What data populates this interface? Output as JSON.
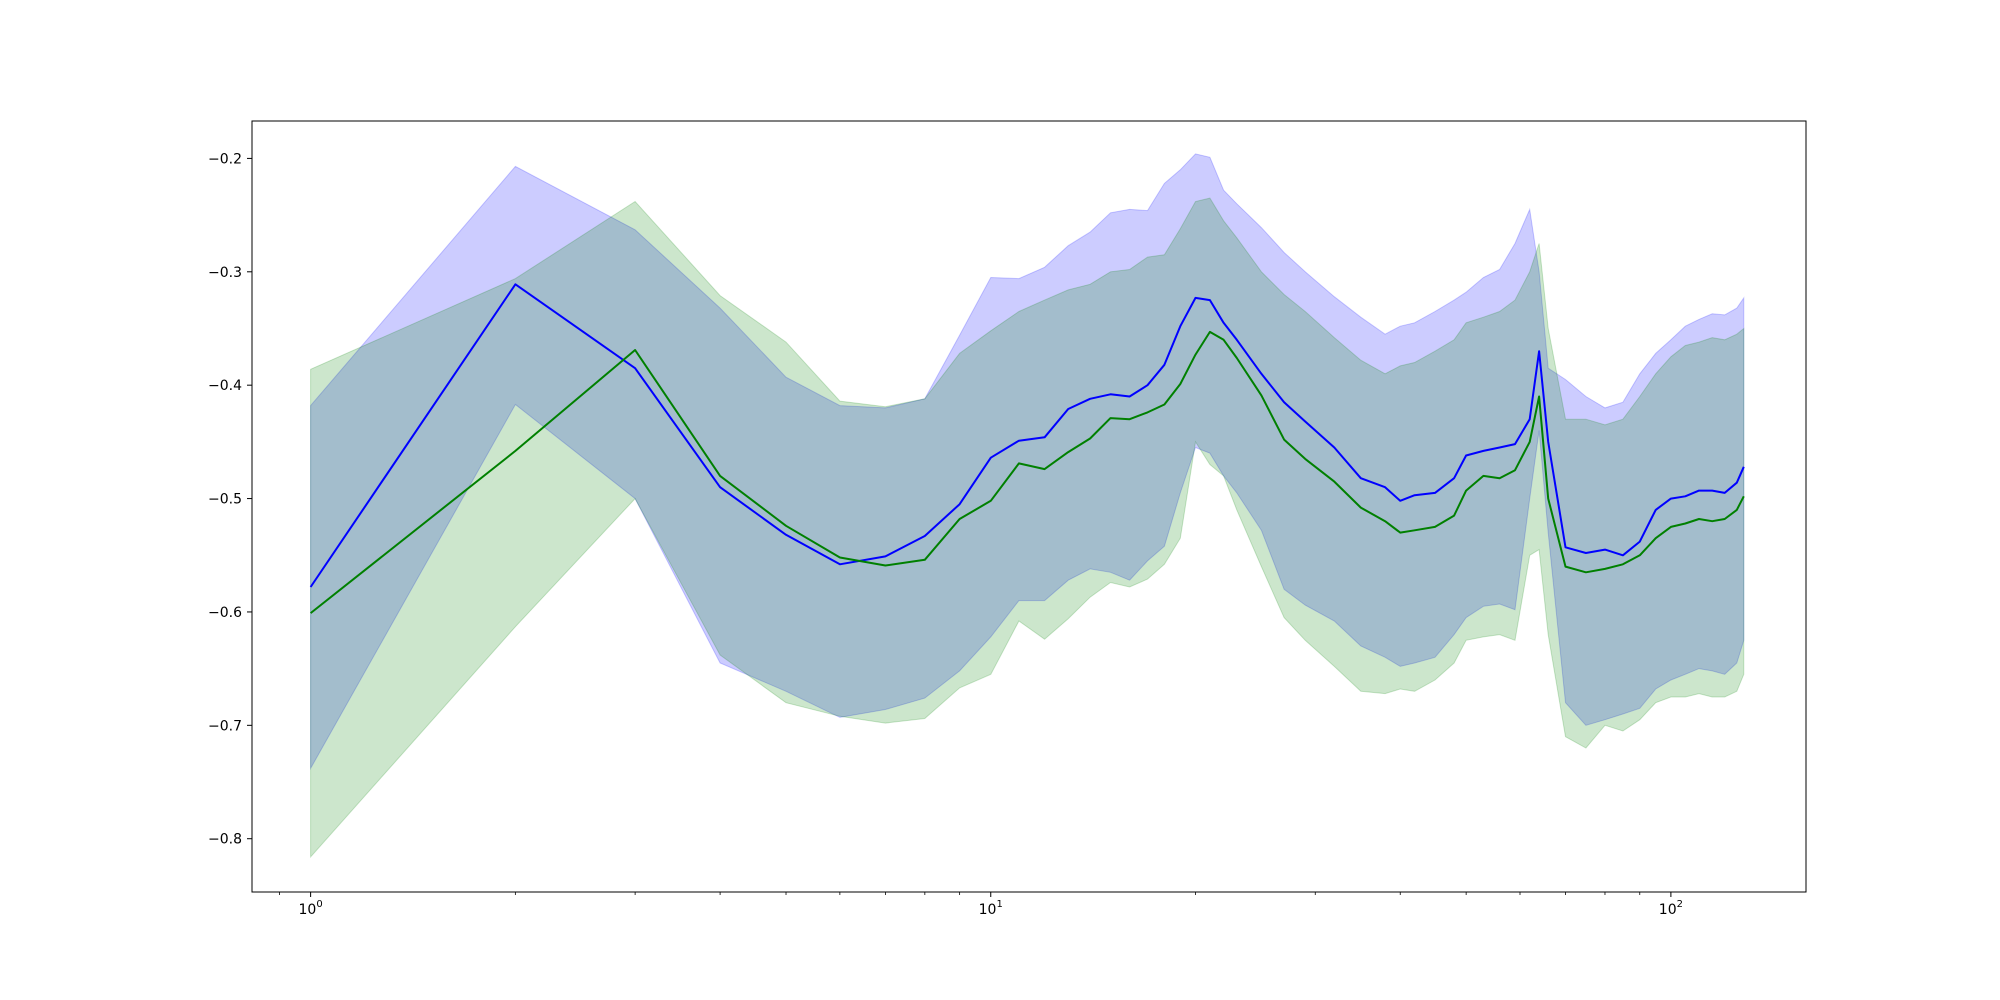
{
  "chart_data": {
    "type": "line",
    "title": "",
    "xlabel": "",
    "ylabel": "",
    "x_scale": "log",
    "xlim": [
      0.82,
      158
    ],
    "ylim": [
      -0.847,
      -0.167
    ],
    "grid": false,
    "legend": "none",
    "x_ticks": [
      {
        "value": 1,
        "base": "10",
        "exp": "0"
      },
      {
        "value": 10,
        "base": "10",
        "exp": "1"
      },
      {
        "value": 100,
        "base": "10",
        "exp": "2"
      }
    ],
    "y_ticks": [
      {
        "value": -0.2,
        "label": "−0.2"
      },
      {
        "value": -0.3,
        "label": "−0.3"
      },
      {
        "value": -0.4,
        "label": "−0.4"
      },
      {
        "value": -0.5,
        "label": "−0.5"
      },
      {
        "value": -0.6,
        "label": "−0.6"
      },
      {
        "value": -0.7,
        "label": "−0.7"
      },
      {
        "value": -0.8,
        "label": "−0.8"
      }
    ],
    "x": [
      1,
      2,
      3,
      4,
      5,
      6,
      7,
      8,
      9,
      10,
      11,
      12,
      13,
      14,
      15,
      16,
      17,
      18,
      19,
      20,
      21,
      22,
      23,
      25,
      27,
      29,
      32,
      35,
      38,
      40,
      42,
      45,
      48,
      50,
      53,
      56,
      59,
      62,
      64,
      66,
      70,
      75,
      80,
      85,
      90,
      95,
      100,
      105,
      110,
      115,
      120,
      125,
      128
    ],
    "series": [
      {
        "color": "#0000ff",
        "band_color": "#0000ff",
        "band_opacity": 0.2,
        "values": [
          -0.578,
          -0.311,
          -0.385,
          -0.49,
          -0.532,
          -0.558,
          -0.551,
          -0.533,
          -0.505,
          -0.464,
          -0.449,
          -0.446,
          -0.421,
          -0.412,
          -0.408,
          -0.41,
          -0.4,
          -0.382,
          -0.348,
          -0.323,
          -0.325,
          -0.345,
          -0.36,
          -0.39,
          -0.415,
          -0.432,
          -0.455,
          -0.482,
          -0.49,
          -0.502,
          -0.497,
          -0.495,
          -0.482,
          -0.462,
          -0.458,
          -0.455,
          -0.452,
          -0.43,
          -0.37,
          -0.45,
          -0.543,
          -0.548,
          -0.545,
          -0.55,
          -0.538,
          -0.51,
          -0.5,
          -0.498,
          -0.493,
          -0.493,
          -0.495,
          -0.486,
          -0.472
        ],
        "upper": [
          -0.418,
          -0.207,
          -0.263,
          -0.332,
          -0.393,
          -0.418,
          -0.42,
          -0.412,
          -0.356,
          -0.305,
          -0.306,
          -0.296,
          -0.277,
          -0.265,
          -0.248,
          -0.245,
          -0.246,
          -0.222,
          -0.21,
          -0.196,
          -0.199,
          -0.228,
          -0.24,
          -0.261,
          -0.283,
          -0.3,
          -0.322,
          -0.34,
          -0.355,
          -0.348,
          -0.345,
          -0.335,
          -0.325,
          -0.318,
          -0.305,
          -0.298,
          -0.275,
          -0.245,
          -0.3,
          -0.385,
          -0.395,
          -0.41,
          -0.42,
          -0.415,
          -0.39,
          -0.372,
          -0.36,
          -0.348,
          -0.342,
          -0.337,
          -0.338,
          -0.332,
          -0.323
        ],
        "lower": [
          -0.738,
          -0.417,
          -0.5,
          -0.645,
          -0.67,
          -0.693,
          -0.686,
          -0.676,
          -0.652,
          -0.622,
          -0.59,
          -0.59,
          -0.572,
          -0.562,
          -0.565,
          -0.572,
          -0.555,
          -0.542,
          -0.495,
          -0.455,
          -0.46,
          -0.48,
          -0.495,
          -0.528,
          -0.58,
          -0.594,
          -0.608,
          -0.63,
          -0.64,
          -0.648,
          -0.645,
          -0.64,
          -0.62,
          -0.605,
          -0.595,
          -0.593,
          -0.598,
          -0.5,
          -0.44,
          -0.53,
          -0.68,
          -0.7,
          -0.695,
          -0.69,
          -0.685,
          -0.668,
          -0.66,
          -0.655,
          -0.65,
          -0.652,
          -0.655,
          -0.645,
          -0.625
        ]
      },
      {
        "color": "#008000",
        "band_color": "#008000",
        "band_opacity": 0.2,
        "values": [
          -0.601,
          -0.458,
          -0.369,
          -0.48,
          -0.524,
          -0.552,
          -0.559,
          -0.554,
          -0.518,
          -0.502,
          -0.469,
          -0.474,
          -0.459,
          -0.447,
          -0.429,
          -0.43,
          -0.424,
          -0.417,
          -0.399,
          -0.373,
          -0.353,
          -0.36,
          -0.376,
          -0.409,
          -0.448,
          -0.465,
          -0.485,
          -0.508,
          -0.52,
          -0.53,
          -0.528,
          -0.525,
          -0.515,
          -0.493,
          -0.48,
          -0.482,
          -0.475,
          -0.45,
          -0.41,
          -0.5,
          -0.56,
          -0.565,
          -0.562,
          -0.558,
          -0.55,
          -0.535,
          -0.525,
          -0.522,
          -0.518,
          -0.52,
          -0.518,
          -0.51,
          -0.498
        ],
        "upper": [
          -0.386,
          -0.306,
          -0.238,
          -0.321,
          -0.362,
          -0.414,
          -0.419,
          -0.412,
          -0.372,
          -0.352,
          -0.335,
          -0.325,
          -0.316,
          -0.311,
          -0.3,
          -0.298,
          -0.287,
          -0.285,
          -0.262,
          -0.238,
          -0.235,
          -0.255,
          -0.27,
          -0.3,
          -0.32,
          -0.335,
          -0.358,
          -0.378,
          -0.39,
          -0.383,
          -0.38,
          -0.37,
          -0.36,
          -0.345,
          -0.34,
          -0.335,
          -0.325,
          -0.3,
          -0.275,
          -0.35,
          -0.43,
          -0.43,
          -0.435,
          -0.43,
          -0.41,
          -0.39,
          -0.375,
          -0.365,
          -0.362,
          -0.358,
          -0.36,
          -0.355,
          -0.35
        ],
        "lower": [
          -0.816,
          -0.613,
          -0.5,
          -0.638,
          -0.68,
          -0.692,
          -0.698,
          -0.694,
          -0.667,
          -0.655,
          -0.608,
          -0.624,
          -0.606,
          -0.587,
          -0.574,
          -0.578,
          -0.571,
          -0.558,
          -0.535,
          -0.45,
          -0.47,
          -0.48,
          -0.51,
          -0.56,
          -0.605,
          -0.625,
          -0.648,
          -0.67,
          -0.672,
          -0.668,
          -0.67,
          -0.66,
          -0.645,
          -0.625,
          -0.622,
          -0.62,
          -0.625,
          -0.55,
          -0.545,
          -0.62,
          -0.71,
          -0.72,
          -0.7,
          -0.705,
          -0.695,
          -0.68,
          -0.675,
          -0.675,
          -0.672,
          -0.675,
          -0.675,
          -0.67,
          -0.655
        ]
      }
    ]
  }
}
